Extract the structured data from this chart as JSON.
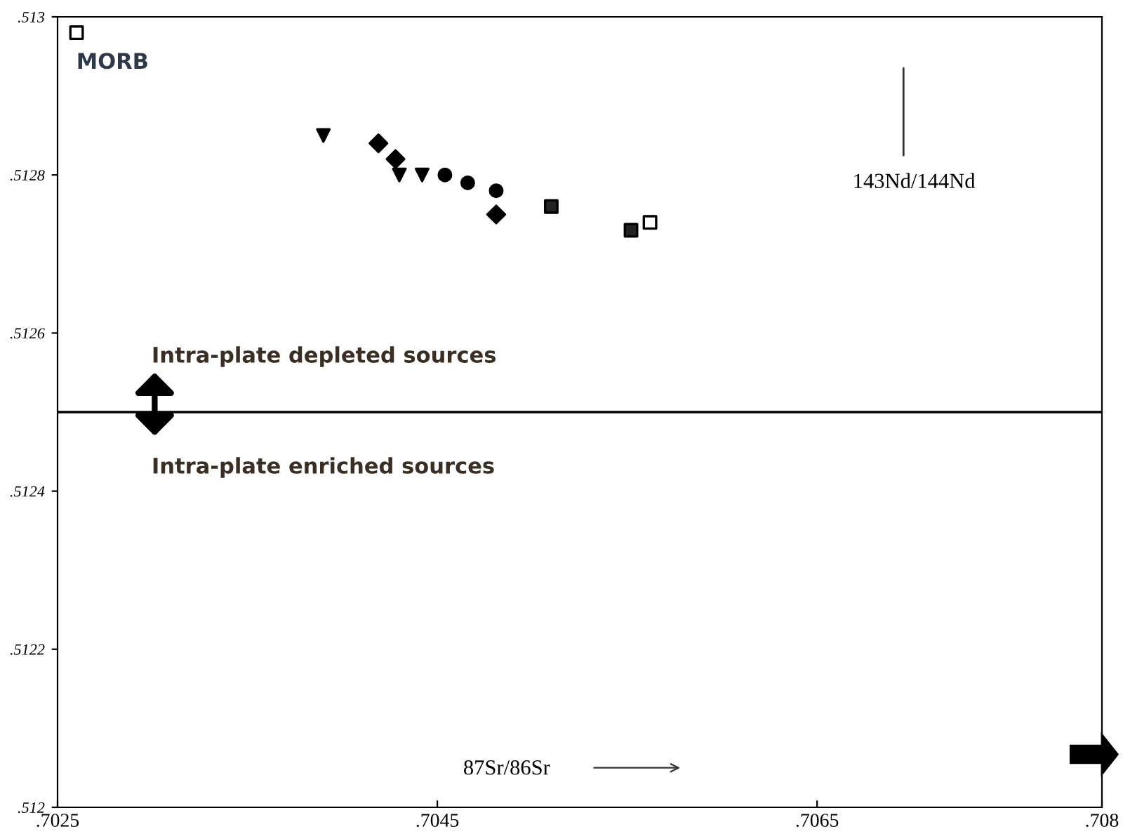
{
  "chart_data": {
    "type": "scatter",
    "xlabel": "87Sr/86Sr",
    "ylabel": "143Nd/144Nd",
    "xlim": [
      0.7025,
      0.708
    ],
    "ylim": [
      0.512,
      0.513
    ],
    "xticks": [
      {
        "value": 0.7025,
        "label": ".7025"
      },
      {
        "value": 0.7045,
        "label": ".7045"
      },
      {
        "value": 0.7065,
        "label": ".7065"
      },
      {
        "value": 0.708,
        "label": ".708"
      }
    ],
    "yticks": [
      {
        "value": 0.512,
        "label": ".512"
      },
      {
        "value": 0.5122,
        "label": ".5122"
      },
      {
        "value": 0.5124,
        "label": ".5124"
      },
      {
        "value": 0.5126,
        "label": ".5126"
      },
      {
        "value": 0.5128,
        "label": ".5128"
      },
      {
        "value": 0.513,
        "label": ".513"
      }
    ],
    "grid": false,
    "legend": false,
    "series": [
      {
        "marker": "triangle",
        "color": "#000000",
        "x": [
          0.7039,
          0.7043,
          0.70442
        ],
        "values": [
          0.51285,
          0.5128,
          0.5128
        ]
      },
      {
        "marker": "diamond",
        "color": "#000000",
        "x": [
          0.70419,
          0.70428,
          0.70481
        ],
        "values": [
          0.51284,
          0.51282,
          0.51275
        ]
      },
      {
        "marker": "circle",
        "color": "#000000",
        "x": [
          0.70454,
          0.70466,
          0.70481
        ],
        "values": [
          0.5128,
          0.51279,
          0.51278
        ]
      },
      {
        "marker": "square",
        "color": "#222222",
        "x": [
          0.7051,
          0.70552
        ],
        "values": [
          0.51276,
          0.51273
        ]
      },
      {
        "marker": "square",
        "color": "#ffffff",
        "x": [
          0.7026,
          0.70562
        ],
        "values": [
          0.51298,
          0.51274
        ]
      }
    ],
    "ref_lines": [
      {
        "axis": "y",
        "value": 0.5125,
        "color": "#000000"
      }
    ],
    "annotations": [
      "MORB",
      "Intra-plate depleted sources",
      "Intra-plate enriched sources"
    ]
  }
}
